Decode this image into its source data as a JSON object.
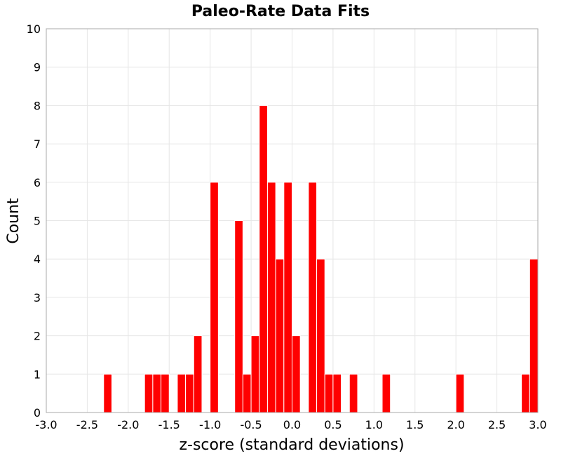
{
  "chart_data": {
    "type": "bar",
    "title": "Paleo-Rate Data Fits",
    "xlabel": "z-score (standard deviations)",
    "ylabel": "Count",
    "xlim": [
      -3.0,
      3.0
    ],
    "ylim": [
      0,
      10
    ],
    "xticks": [
      "-3.0",
      "-2.5",
      "-2.0",
      "-1.5",
      "-1.0",
      "-0.5",
      "0.0",
      "0.5",
      "1.0",
      "1.5",
      "2.0",
      "2.5",
      "3.0"
    ],
    "yticks": [
      "0",
      "1",
      "2",
      "3",
      "4",
      "5",
      "6",
      "7",
      "8",
      "9",
      "10"
    ],
    "grid": true,
    "bar_color": "#ff0000",
    "bin_width": 0.1,
    "bins": [
      {
        "x": -2.25,
        "count": 1
      },
      {
        "x": -1.75,
        "count": 1
      },
      {
        "x": -1.65,
        "count": 1
      },
      {
        "x": -1.55,
        "count": 1
      },
      {
        "x": -1.35,
        "count": 1
      },
      {
        "x": -1.25,
        "count": 1
      },
      {
        "x": -1.15,
        "count": 2
      },
      {
        "x": -0.95,
        "count": 6
      },
      {
        "x": -0.65,
        "count": 5
      },
      {
        "x": -0.55,
        "count": 1
      },
      {
        "x": -0.45,
        "count": 2
      },
      {
        "x": -0.35,
        "count": 8
      },
      {
        "x": -0.25,
        "count": 6
      },
      {
        "x": -0.15,
        "count": 4
      },
      {
        "x": -0.05,
        "count": 6
      },
      {
        "x": 0.05,
        "count": 2
      },
      {
        "x": 0.25,
        "count": 6
      },
      {
        "x": 0.35,
        "count": 4
      },
      {
        "x": 0.45,
        "count": 1
      },
      {
        "x": 0.55,
        "count": 1
      },
      {
        "x": 0.75,
        "count": 1
      },
      {
        "x": 1.15,
        "count": 1
      },
      {
        "x": 2.05,
        "count": 1
      },
      {
        "x": 2.85,
        "count": 1
      },
      {
        "x": 2.95,
        "count": 4
      }
    ]
  }
}
